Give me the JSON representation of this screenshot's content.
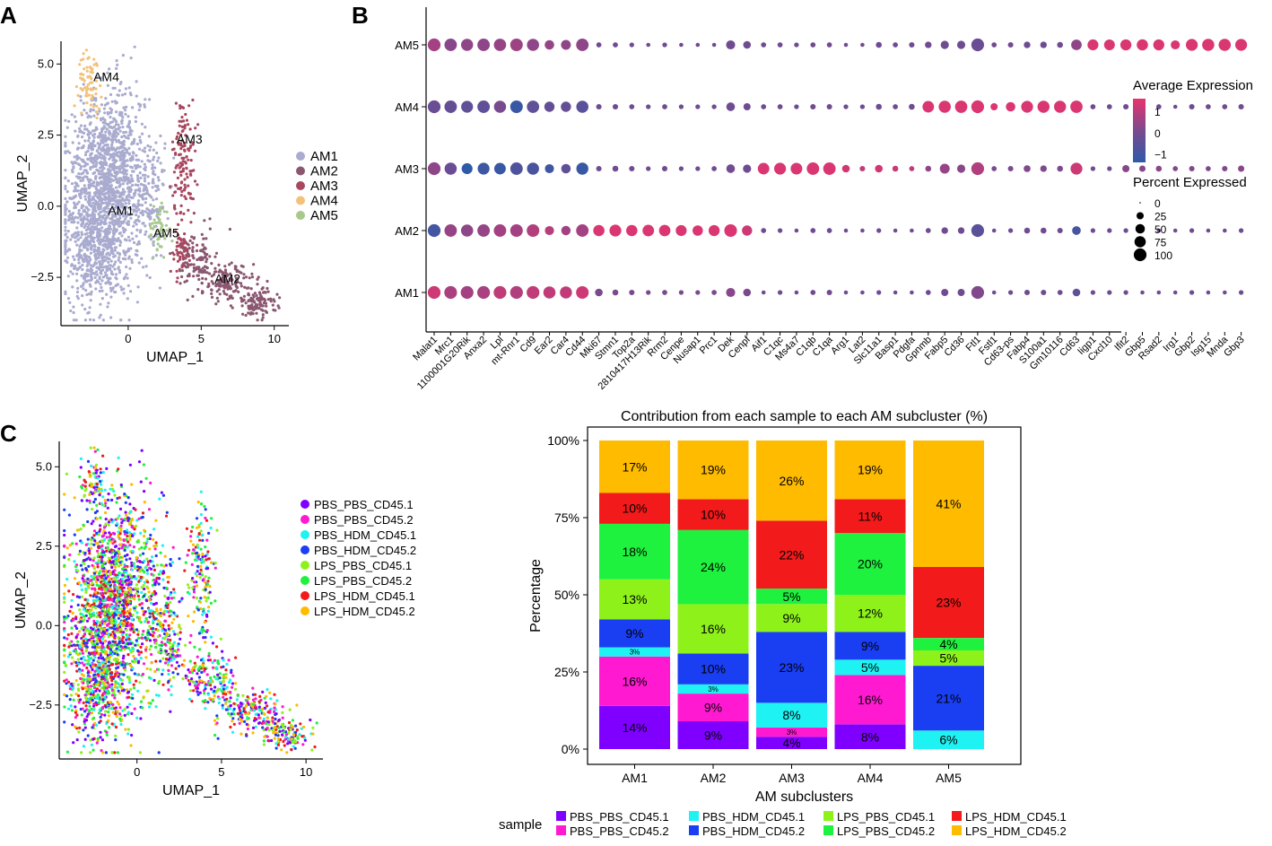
{
  "panel_labels": {
    "a": "A",
    "b": "B",
    "c": "C"
  },
  "chart_data": [
    {
      "id": "A",
      "type": "scatter",
      "xlabel": "UMAP_1",
      "ylabel": "UMAP_2",
      "xlim": [
        -4.6,
        11
      ],
      "ylim": [
        -4.2,
        5.8
      ],
      "xticks": [
        {
          "v": 0,
          "label": "0"
        },
        {
          "v": 5,
          "label": "5"
        },
        {
          "v": 10,
          "label": "10"
        }
      ],
      "yticks": [
        {
          "v": 5,
          "label": "5.0"
        },
        {
          "v": 2.5,
          "label": "2.5"
        },
        {
          "v": 0,
          "label": "0.0"
        },
        {
          "v": -2.5,
          "label": "−2.5"
        }
      ],
      "clusters": [
        {
          "name": "AM1",
          "color": "#a9abcf"
        },
        {
          "name": "AM2",
          "color": "#8a5770"
        },
        {
          "name": "AM3",
          "color": "#a8475f"
        },
        {
          "name": "AM4",
          "color": "#f2c27b"
        },
        {
          "name": "AM5",
          "color": "#a7c98c"
        }
      ],
      "labels": [
        {
          "text": "AM4",
          "x": -1.5,
          "y": 4.4
        },
        {
          "text": "AM3",
          "x": 4.2,
          "y": 2.2
        },
        {
          "text": "AM1",
          "x": -0.5,
          "y": -0.3
        },
        {
          "text": "AM5",
          "x": 2.6,
          "y": -1.1
        },
        {
          "text": "AM2",
          "x": 6.8,
          "y": -2.7
        }
      ]
    },
    {
      "id": "B",
      "type": "dot",
      "rows": [
        "AM1",
        "AM2",
        "AM3",
        "AM4",
        "AM5"
      ],
      "genes": [
        "Malat1",
        "Mrc1",
        "1100001G20Rik",
        "Anxa2",
        "Lpl",
        "mt-Rnr1",
        "Cd9",
        "Ear2",
        "Car4",
        "Cd44",
        "Mki67",
        "Stmn1",
        "Top2a",
        "2810417H13Rik",
        "Rrm2",
        "Cenpe",
        "Nusap1",
        "Prc1",
        "Dek",
        "Cenpf",
        "Aif1",
        "C1qc",
        "Ms4a7",
        "C1qb",
        "C1qa",
        "Arg1",
        "Lat2",
        "Slc11a1",
        "Basp1",
        "Pdgfa",
        "Gpnmb",
        "Fabp5",
        "Cd36",
        "Ftl1",
        "Fstl1",
        "Cd63-ps",
        "Fabp4",
        "S100a1",
        "Gm10116",
        "Cd63",
        "Iigp1",
        "Cxcl10",
        "Ifit2",
        "Gbp5",
        "Rsad2",
        "Irg1",
        "Gbp2",
        "Isg15",
        "Mnda",
        "Gbp3"
      ],
      "size_legend_title": "Percent Expressed",
      "size_legend": [
        0,
        25,
        50,
        75,
        100
      ],
      "color_legend_title": "Average Expression",
      "color_legend_ticks": [
        {
          "v": 1,
          "label": "1"
        },
        {
          "v": 0,
          "label": "0"
        },
        {
          "v": -1,
          "label": "−1"
        }
      ],
      "color_scale": {
        "low": "#2e5aa8",
        "mid": "#7a4a8e",
        "high": "#e8336d",
        "min": -1.4,
        "max": 1.6
      },
      "pct": [
        [
          100,
          100,
          100,
          100,
          100,
          100,
          100,
          90,
          88,
          97,
          30,
          15,
          12,
          8,
          10,
          8,
          8,
          10,
          45,
          30,
          5,
          8,
          5,
          10,
          12,
          5,
          5,
          8,
          5,
          5,
          10,
          25,
          25,
          100,
          5,
          8,
          12,
          12,
          10,
          30,
          8,
          8,
          8,
          5,
          5,
          5,
          8,
          5,
          5,
          8
        ],
        [
          100,
          95,
          90,
          95,
          95,
          97,
          97,
          45,
          48,
          95,
          75,
          85,
          75,
          80,
          78,
          70,
          62,
          72,
          98,
          60,
          10,
          8,
          5,
          10,
          10,
          5,
          5,
          8,
          5,
          5,
          10,
          20,
          20,
          100,
          5,
          8,
          15,
          15,
          12,
          40,
          8,
          8,
          8,
          5,
          5,
          5,
          8,
          5,
          5,
          8
        ],
        [
          100,
          90,
          70,
          85,
          80,
          95,
          88,
          45,
          50,
          88,
          12,
          15,
          12,
          8,
          12,
          8,
          8,
          10,
          40,
          35,
          80,
          85,
          82,
          95,
          95,
          30,
          12,
          30,
          15,
          10,
          15,
          55,
          35,
          100,
          10,
          12,
          22,
          20,
          15,
          85,
          8,
          8,
          25,
          18,
          15,
          10,
          12,
          10,
          12,
          18
        ],
        [
          100,
          95,
          85,
          95,
          90,
          97,
          92,
          60,
          60,
          90,
          12,
          12,
          10,
          8,
          10,
          8,
          8,
          8,
          40,
          25,
          10,
          10,
          8,
          12,
          12,
          8,
          8,
          15,
          10,
          15,
          80,
          90,
          92,
          100,
          25,
          50,
          85,
          88,
          88,
          92,
          10,
          10,
          12,
          10,
          10,
          5,
          12,
          10,
          10,
          12
        ],
        [
          100,
          95,
          88,
          95,
          92,
          97,
          90,
          50,
          55,
          95,
          10,
          10,
          8,
          5,
          8,
          5,
          5,
          5,
          45,
          30,
          10,
          10,
          8,
          10,
          10,
          5,
          5,
          15,
          10,
          12,
          20,
          35,
          35,
          100,
          10,
          12,
          20,
          20,
          15,
          65,
          70,
          68,
          72,
          75,
          72,
          45,
          85,
          90,
          90,
          85
        ]
      ],
      "avg": [
        [
          1.2,
          0.7,
          0.6,
          0.7,
          1.0,
          0.8,
          1.0,
          1.0,
          1.0,
          1.2,
          0.0,
          0.0,
          0.0,
          0.0,
          0.0,
          0.0,
          0.0,
          0.0,
          0.2,
          0.0,
          -0.2,
          -0.2,
          -0.2,
          -0.2,
          -0.2,
          -0.2,
          -0.2,
          -0.2,
          -0.2,
          -0.2,
          -0.2,
          -0.2,
          -0.2,
          0.1,
          -0.2,
          -0.2,
          -0.2,
          -0.2,
          -0.2,
          -0.5,
          -0.2,
          -0.2,
          -0.2,
          -0.2,
          -0.2,
          -0.2,
          -0.2,
          -0.2,
          -0.2,
          -0.2
        ],
        [
          -1.0,
          0.4,
          0.3,
          0.4,
          0.6,
          0.6,
          0.8,
          0.9,
          0.6,
          0.6,
          1.4,
          1.4,
          1.4,
          1.4,
          1.4,
          1.4,
          1.4,
          1.4,
          1.4,
          1.2,
          -0.2,
          -0.2,
          -0.2,
          -0.2,
          -0.2,
          -0.2,
          -0.2,
          -0.2,
          -0.2,
          -0.2,
          -0.2,
          -0.2,
          -0.2,
          -0.6,
          -0.2,
          -0.2,
          -0.2,
          -0.2,
          -0.2,
          -1.0,
          -0.2,
          -0.2,
          -0.2,
          -0.2,
          -0.2,
          -0.2,
          -0.2,
          -0.2,
          -0.2,
          -0.2
        ],
        [
          0.3,
          -0.3,
          -1.4,
          -1.1,
          -1.2,
          -0.8,
          -0.9,
          -1.1,
          -0.5,
          -1.2,
          -0.2,
          -0.2,
          -0.2,
          -0.2,
          -0.2,
          -0.2,
          -0.2,
          -0.2,
          -0.1,
          -0.2,
          1.4,
          1.4,
          1.4,
          1.4,
          1.4,
          1.3,
          1.0,
          1.3,
          1.1,
          1.0,
          0.3,
          0.4,
          0.2,
          0.8,
          0.0,
          0.0,
          0.1,
          0.1,
          0.0,
          1.2,
          -0.2,
          -0.2,
          0.2,
          0.2,
          0.2,
          0.1,
          0.1,
          0.1,
          0.1,
          0.2
        ],
        [
          -0.3,
          -0.4,
          -0.5,
          -0.5,
          0.0,
          -1.2,
          -0.5,
          -0.4,
          -0.4,
          -0.6,
          -0.2,
          -0.2,
          -0.2,
          -0.2,
          -0.2,
          -0.2,
          -0.2,
          -0.2,
          -0.2,
          -0.2,
          -0.2,
          -0.2,
          -0.2,
          -0.2,
          -0.2,
          -0.2,
          -0.2,
          -0.2,
          -0.2,
          -0.2,
          1.4,
          1.4,
          1.4,
          1.4,
          1.4,
          1.4,
          1.4,
          1.4,
          1.4,
          1.4,
          -0.2,
          -0.2,
          -0.2,
          -0.2,
          -0.2,
          -0.2,
          -0.2,
          -0.2,
          -0.2,
          -0.2
        ],
        [
          0.6,
          0.2,
          0.3,
          0.3,
          0.4,
          0.5,
          0.3,
          0.4,
          0.3,
          0.3,
          -0.2,
          -0.2,
          -0.2,
          -0.2,
          -0.2,
          -0.2,
          -0.2,
          -0.2,
          -0.2,
          -0.2,
          -0.2,
          -0.2,
          -0.2,
          -0.2,
          -0.2,
          -0.2,
          -0.2,
          -0.2,
          -0.2,
          -0.2,
          -0.2,
          -0.2,
          -0.2,
          -0.3,
          -0.2,
          -0.2,
          -0.2,
          -0.2,
          -0.2,
          0.3,
          1.4,
          1.4,
          1.4,
          1.4,
          1.4,
          1.4,
          1.4,
          1.4,
          1.4,
          1.4
        ]
      ]
    },
    {
      "id": "C",
      "type": "scatter",
      "xlabel": "UMAP_1",
      "ylabel": "UMAP_2",
      "xlim": [
        -4.6,
        11
      ],
      "ylim": [
        -4.2,
        5.8
      ],
      "xticks": [
        {
          "v": 0,
          "label": "0"
        },
        {
          "v": 5,
          "label": "5"
        },
        {
          "v": 10,
          "label": "10"
        }
      ],
      "yticks": [
        {
          "v": 5,
          "label": "5.0"
        },
        {
          "v": 2.5,
          "label": "2.5"
        },
        {
          "v": 0,
          "label": "0.0"
        },
        {
          "v": -2.5,
          "label": "−2.5"
        }
      ],
      "samples": [
        {
          "name": "PBS_PBS_CD45.1",
          "color": "#7f00ff"
        },
        {
          "name": "PBS_PBS_CD45.2",
          "color": "#ff1ad1"
        },
        {
          "name": "PBS_HDM_CD45.1",
          "color": "#1ef2f2"
        },
        {
          "name": "PBS_HDM_CD45.2",
          "color": "#1a3ef2"
        },
        {
          "name": "LPS_PBS_CD45.1",
          "color": "#8ef21a"
        },
        {
          "name": "LPS_PBS_CD45.2",
          "color": "#1ef23e"
        },
        {
          "name": "LPS_HDM_CD45.1",
          "color": "#f21a1a"
        },
        {
          "name": "LPS_HDM_CD45.2",
          "color": "#ffbb00"
        }
      ]
    },
    {
      "id": "D",
      "type": "stacked-bar",
      "title": "Contribution from each sample to each AM subcluster (%)",
      "xlabel": "AM subclusters",
      "ylabel": "Percentage",
      "categories": [
        "AM1",
        "AM2",
        "AM3",
        "AM4",
        "AM5"
      ],
      "yticks": [
        {
          "v": 0,
          "label": "0%"
        },
        {
          "v": 25,
          "label": "25%"
        },
        {
          "v": 50,
          "label": "50%"
        },
        {
          "v": 75,
          "label": "75%"
        },
        {
          "v": 100,
          "label": "100%"
        }
      ],
      "legend_title": "sample",
      "series": [
        {
          "name": "PBS_PBS_CD45.1",
          "color": "#7f00ff",
          "values": [
            14,
            9,
            4,
            8,
            0
          ],
          "labels": [
            "14%",
            "9%",
            "4%",
            "8%",
            ""
          ]
        },
        {
          "name": "PBS_PBS_CD45.2",
          "color": "#ff1ad1",
          "values": [
            16,
            9,
            3,
            16,
            0
          ],
          "labels": [
            "16%",
            "9%",
            "3%",
            "16%",
            ""
          ]
        },
        {
          "name": "PBS_HDM_CD45.1",
          "color": "#1ef2f2",
          "values": [
            3,
            3,
            8,
            5,
            6
          ],
          "labels": [
            "3%",
            "3%",
            "8%",
            "5%",
            "6%"
          ]
        },
        {
          "name": "PBS_HDM_CD45.2",
          "color": "#1a3ef2",
          "values": [
            9,
            10,
            23,
            9,
            21
          ],
          "labels": [
            "9%",
            "10%",
            "23%",
            "9%",
            "21%"
          ]
        },
        {
          "name": "LPS_PBS_CD45.1",
          "color": "#8ef21a",
          "values": [
            13,
            16,
            9,
            12,
            5
          ],
          "labels": [
            "13%",
            "16%",
            "9%",
            "12%",
            "5%"
          ]
        },
        {
          "name": "LPS_PBS_CD45.2",
          "color": "#1ef23e",
          "values": [
            18,
            24,
            5,
            20,
            4
          ],
          "labels": [
            "18%",
            "24%",
            "5%",
            "20%",
            "4%"
          ]
        },
        {
          "name": "LPS_HDM_CD45.1",
          "color": "#f21a1a",
          "values": [
            10,
            10,
            22,
            11,
            23
          ],
          "labels": [
            "10%",
            "10%",
            "22%",
            "11%",
            "23%"
          ]
        },
        {
          "name": "LPS_HDM_CD45.2",
          "color": "#ffbb00",
          "values": [
            17,
            19,
            26,
            19,
            41
          ],
          "labels": [
            "17%",
            "19%",
            "26%",
            "19%",
            "41%"
          ]
        }
      ]
    }
  ]
}
